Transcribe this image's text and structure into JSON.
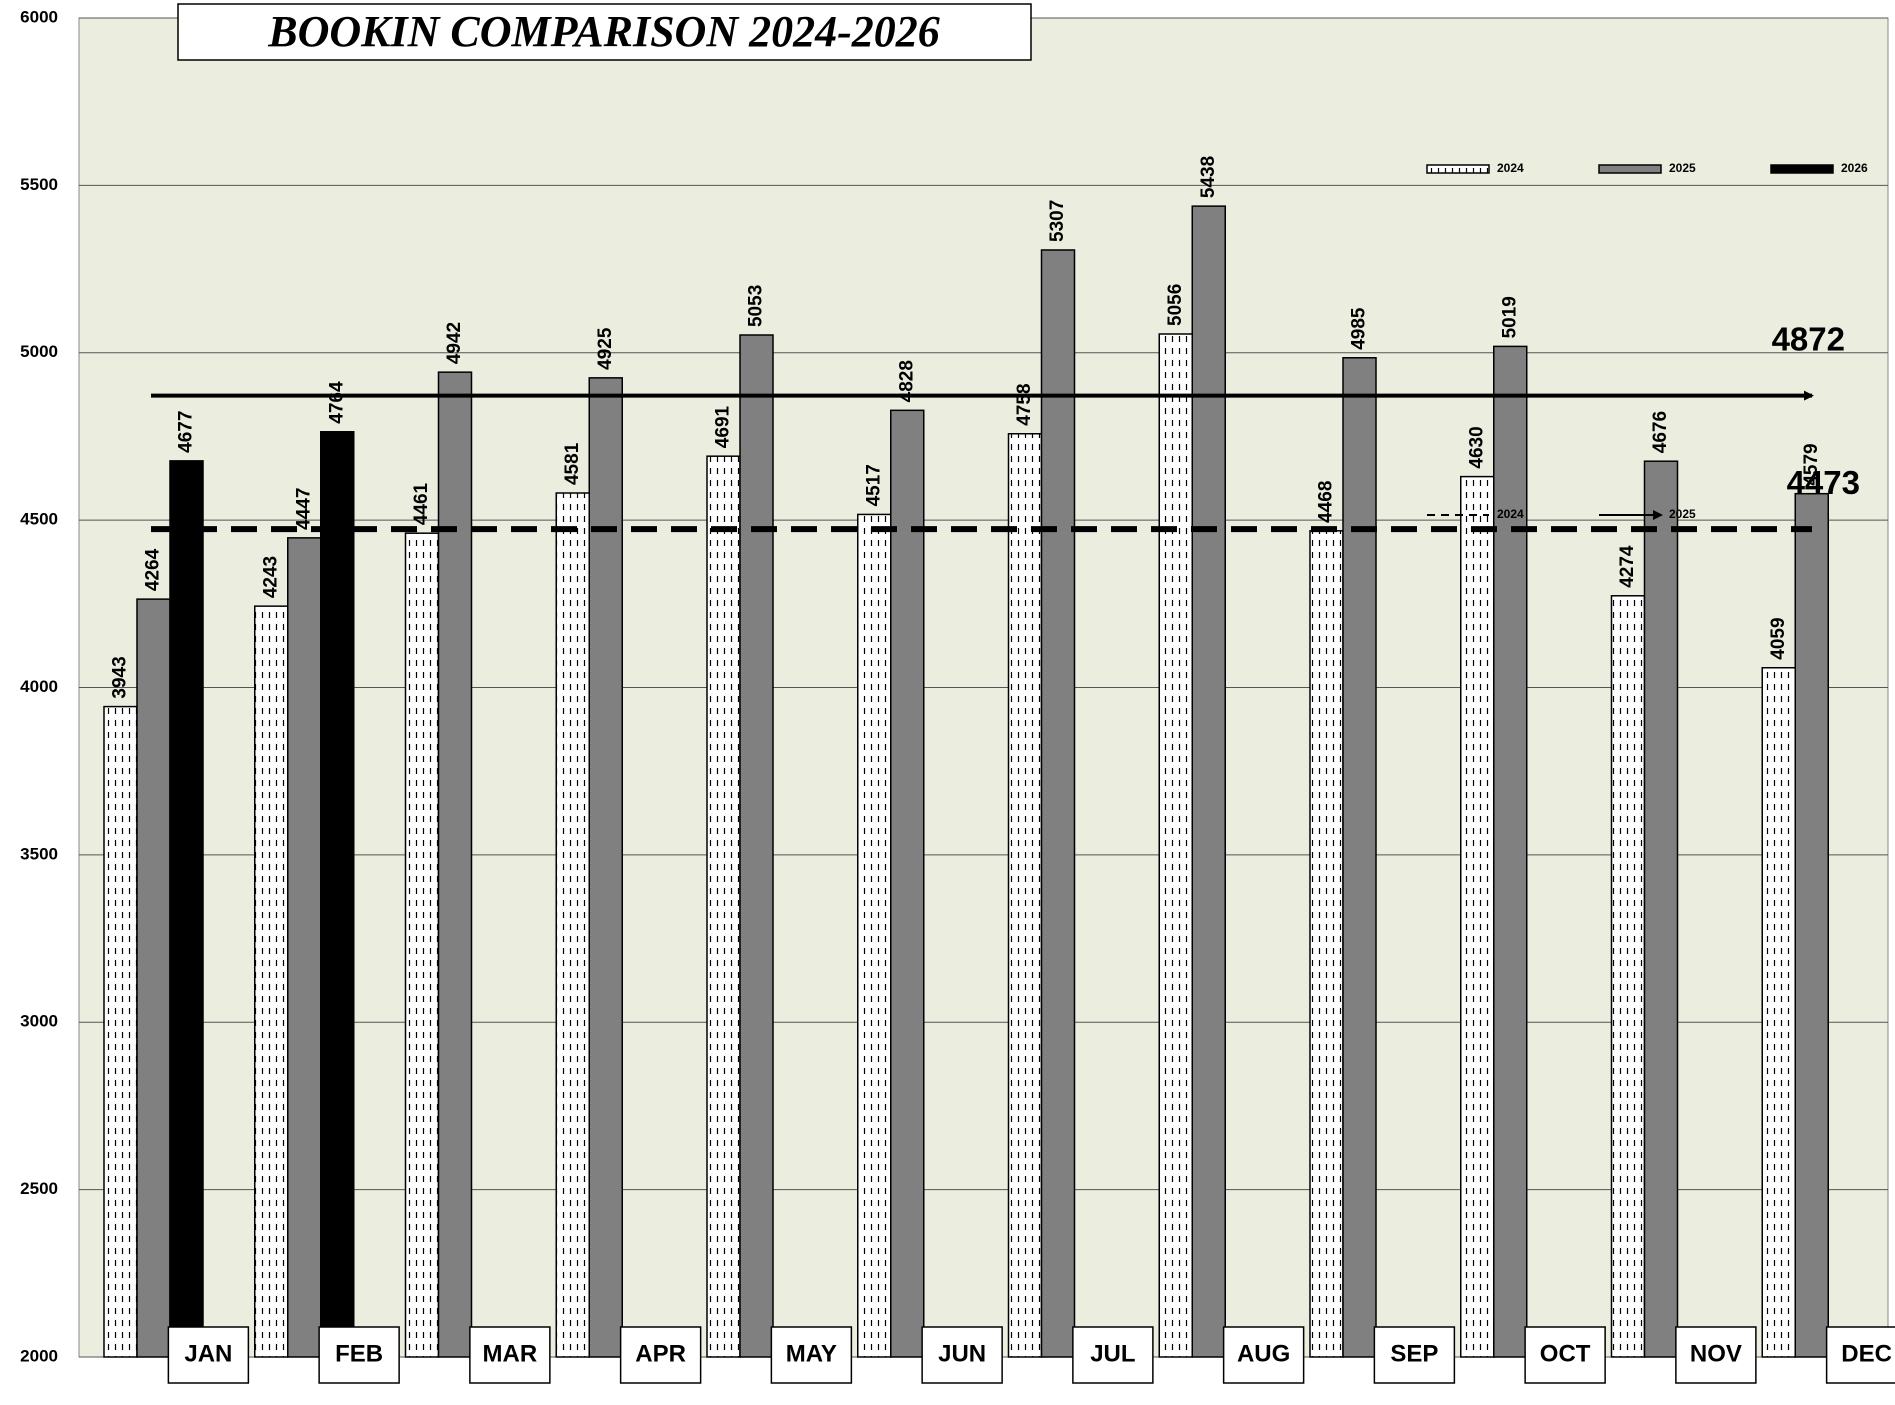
{
  "chart_data": {
    "type": "bar",
    "title": "BOOKIN COMPARISON 2024-2026",
    "categories": [
      "JAN",
      "FEB",
      "MAR",
      "APR",
      "MAY",
      "JUN",
      "JUL",
      "AUG",
      "SEP",
      "OCT",
      "NOV",
      "DEC"
    ],
    "series": [
      {
        "name": "2024",
        "color": "#ffffff",
        "pattern": "dashed-vertical",
        "values": [
          3943,
          4243,
          4461,
          4581,
          4691,
          4517,
          4758,
          5056,
          4468,
          4630,
          4274,
          4059
        ]
      },
      {
        "name": "2025",
        "color": "#808080",
        "values": [
          4264,
          4447,
          4942,
          4925,
          5053,
          4828,
          5307,
          5438,
          4985,
          5019,
          4676,
          4579
        ]
      },
      {
        "name": "2026",
        "color": "#000000",
        "values": [
          4677,
          4764,
          null,
          null,
          null,
          null,
          null,
          null,
          null,
          null,
          null,
          null
        ]
      }
    ],
    "reference_lines": [
      {
        "name": "2025",
        "value": 4872,
        "style": "solid-arrow"
      },
      {
        "name": "2024",
        "value": 4473,
        "style": "dashed"
      }
    ],
    "ylim": [
      2000,
      6000
    ],
    "yticks": [
      2000,
      2500,
      3000,
      3500,
      4000,
      4500,
      5000,
      5500,
      6000
    ],
    "grid": true,
    "legend": "upper right"
  }
}
